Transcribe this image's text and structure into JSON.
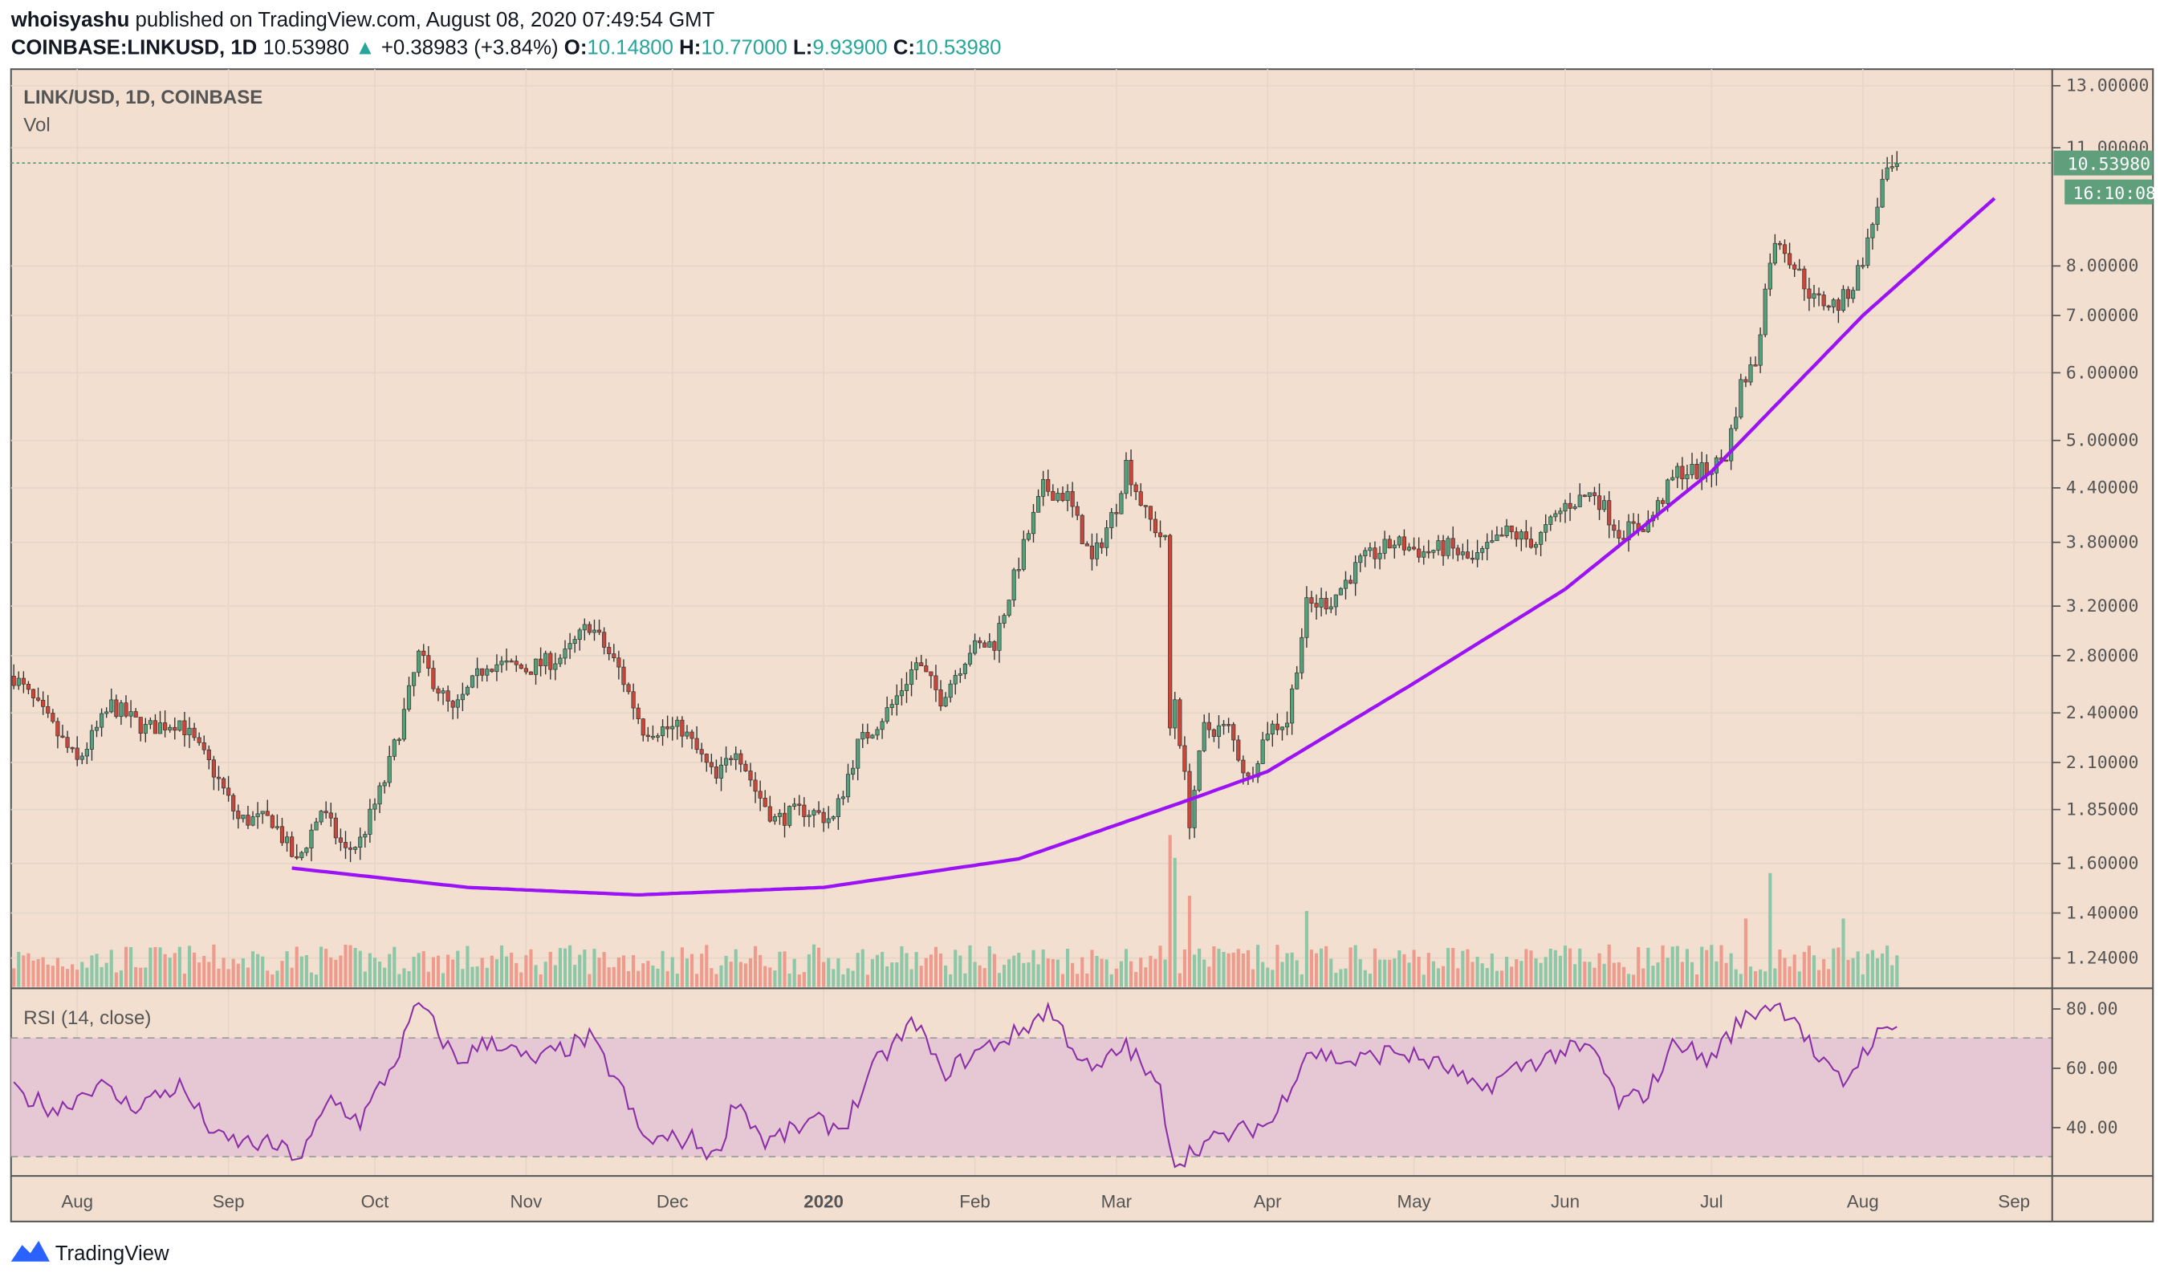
{
  "header": {
    "author": "whoisyashu",
    "published": "published on TradingView.com, August 08, 2020 07:49:54 GMT",
    "symbol": "COINBASE:LINKUSD, 1D",
    "last": "10.53980",
    "change": "+0.38983 (+3.84%)",
    "o_label": "O:",
    "o": "10.14800",
    "h_label": "H:",
    "h": "10.77000",
    "l_label": "L:",
    "l": "9.93900",
    "c_label": "C:",
    "c": "10.53980"
  },
  "legend": {
    "title": "LINK/USD, 1D, COINBASE",
    "vol": "Vol",
    "rsi": "RSI (14, close)"
  },
  "price_tag": {
    "price": "10.53980",
    "countdown": "16:10:08"
  },
  "footer": {
    "brand": "TradingView"
  },
  "colors": {
    "bg": "#f2dfcf",
    "up": "#53a07a",
    "down": "#c9473a",
    "curve": "#9b12f5",
    "rsi": "#8b2fa8",
    "rsi_band": "#e6c8d4"
  },
  "chart_data": {
    "type": "candlestick",
    "title": "LINK/USD, 1D, COINBASE",
    "start_date": "2019-07-19",
    "end_date": "2020-08-08",
    "y_scale": "log",
    "ylim": [
      1.16,
      14.0
    ],
    "y_ticks": [
      "13.00000",
      "11.00000",
      "8.00000",
      "7.00000",
      "6.00000",
      "5.00000",
      "4.40000",
      "3.80000",
      "3.20000",
      "2.80000",
      "2.40000",
      "2.10000",
      "1.85000",
      "1.60000",
      "1.40000",
      "1.24000"
    ],
    "x_ticks": [
      {
        "label": "Aug",
        "date": "2019-08-01"
      },
      {
        "label": "Sep",
        "date": "2019-09-01"
      },
      {
        "label": "Oct",
        "date": "2019-10-01"
      },
      {
        "label": "Nov",
        "date": "2019-11-01"
      },
      {
        "label": "Dec",
        "date": "2019-12-01"
      },
      {
        "label": "2020",
        "date": "2020-01-01"
      },
      {
        "label": "Feb",
        "date": "2020-02-01"
      },
      {
        "label": "Mar",
        "date": "2020-03-01"
      },
      {
        "label": "Apr",
        "date": "2020-04-01"
      },
      {
        "label": "May",
        "date": "2020-05-01"
      },
      {
        "label": "Jun",
        "date": "2020-06-01"
      },
      {
        "label": "Jul",
        "date": "2020-07-01"
      },
      {
        "label": "Aug",
        "date": "2020-08-01"
      },
      {
        "label": "Sep",
        "date": "2020-09-01"
      }
    ],
    "close_anchors": [
      [
        "2019-07-19",
        2.65
      ],
      [
        "2019-07-26",
        2.35
      ],
      [
        "2019-08-01",
        2.1
      ],
      [
        "2019-08-08",
        2.45
      ],
      [
        "2019-08-15",
        2.3
      ],
      [
        "2019-08-22",
        2.35
      ],
      [
        "2019-08-29",
        2.05
      ],
      [
        "2019-09-03",
        1.8
      ],
      [
        "2019-09-10",
        1.8
      ],
      [
        "2019-09-15",
        1.6
      ],
      [
        "2019-09-20",
        1.85
      ],
      [
        "2019-09-25",
        1.65
      ],
      [
        "2019-09-28",
        1.7
      ],
      [
        "2019-10-03",
        2.0
      ],
      [
        "2019-10-07",
        2.4
      ],
      [
        "2019-10-10",
        2.8
      ],
      [
        "2019-10-17",
        2.4
      ],
      [
        "2019-10-24",
        2.75
      ],
      [
        "2019-11-01",
        2.7
      ],
      [
        "2019-11-09",
        2.8
      ],
      [
        "2019-11-14",
        3.05
      ],
      [
        "2019-11-20",
        2.7
      ],
      [
        "2019-11-25",
        2.3
      ],
      [
        "2019-12-03",
        2.3
      ],
      [
        "2019-12-10",
        2.0
      ],
      [
        "2019-12-14",
        2.2
      ],
      [
        "2019-12-18",
        1.95
      ],
      [
        "2019-12-22",
        1.8
      ],
      [
        "2019-12-28",
        1.85
      ],
      [
        "2020-01-03",
        1.8
      ],
      [
        "2020-01-08",
        2.2
      ],
      [
        "2020-01-15",
        2.45
      ],
      [
        "2020-01-20",
        2.75
      ],
      [
        "2020-01-25",
        2.5
      ],
      [
        "2020-01-31",
        2.85
      ],
      [
        "2020-02-05",
        2.9
      ],
      [
        "2020-02-10",
        3.6
      ],
      [
        "2020-02-15",
        4.4
      ],
      [
        "2020-02-20",
        4.3
      ],
      [
        "2020-02-25",
        3.6
      ],
      [
        "2020-03-01",
        4.2
      ],
      [
        "2020-03-03",
        4.7
      ],
      [
        "2020-03-07",
        4.1
      ],
      [
        "2020-03-11",
        3.8
      ],
      [
        "2020-03-12",
        2.3
      ],
      [
        "2020-03-13",
        2.5
      ],
      [
        "2020-03-16",
        1.8
      ],
      [
        "2020-03-19",
        2.3
      ],
      [
        "2020-03-24",
        2.3
      ],
      [
        "2020-03-28",
        2.0
      ],
      [
        "2020-04-01",
        2.3
      ],
      [
        "2020-04-05",
        2.35
      ],
      [
        "2020-04-09",
        3.2
      ],
      [
        "2020-04-14",
        3.25
      ],
      [
        "2020-04-20",
        3.6
      ],
      [
        "2020-04-27",
        3.8
      ],
      [
        "2020-05-03",
        3.7
      ],
      [
        "2020-05-08",
        3.75
      ],
      [
        "2020-05-13",
        3.6
      ],
      [
        "2020-05-20",
        3.9
      ],
      [
        "2020-05-26",
        3.8
      ],
      [
        "2020-06-01",
        4.2
      ],
      [
        "2020-06-07",
        4.35
      ],
      [
        "2020-06-12",
        3.9
      ],
      [
        "2020-06-18",
        4.0
      ],
      [
        "2020-06-24",
        4.6
      ],
      [
        "2020-06-30",
        4.6
      ],
      [
        "2020-07-04",
        4.8
      ],
      [
        "2020-07-07",
        5.8
      ],
      [
        "2020-07-10",
        6.2
      ],
      [
        "2020-07-13",
        8.2
      ],
      [
        "2020-07-15",
        8.6
      ],
      [
        "2020-07-18",
        8.0
      ],
      [
        "2020-07-22",
        7.3
      ],
      [
        "2020-07-27",
        7.2
      ],
      [
        "2020-07-30",
        7.6
      ],
      [
        "2020-08-02",
        8.5
      ],
      [
        "2020-08-05",
        10.0
      ],
      [
        "2020-08-08",
        10.5398
      ]
    ],
    "volume_spikes": [
      [
        "2020-03-12",
        1.0
      ],
      [
        "2020-03-13",
        0.85
      ],
      [
        "2020-03-16",
        0.6
      ],
      [
        "2020-07-13",
        0.75
      ],
      [
        "2020-07-08",
        0.45
      ],
      [
        "2020-04-09",
        0.5
      ],
      [
        "2020-07-28",
        0.45
      ]
    ],
    "trend_curve": [
      [
        "2019-09-14",
        1.58
      ],
      [
        "2019-10-20",
        1.5
      ],
      [
        "2019-11-24",
        1.47
      ],
      [
        "2020-01-01",
        1.5
      ],
      [
        "2020-02-10",
        1.62
      ],
      [
        "2020-03-16",
        1.9
      ],
      [
        "2020-04-01",
        2.05
      ],
      [
        "2020-05-01",
        2.6
      ],
      [
        "2020-06-01",
        3.35
      ],
      [
        "2020-07-01",
        4.6
      ],
      [
        "2020-08-01",
        7.0
      ],
      [
        "2020-08-28",
        9.6
      ]
    ],
    "rsi": {
      "title": "RSI (14, close)",
      "ylim": [
        22,
        88
      ],
      "bands": [
        30,
        70
      ],
      "y_ticks": [
        "80.00",
        "60.00",
        "40.00"
      ],
      "anchors": [
        [
          "2019-07-19",
          52
        ],
        [
          "2019-07-28",
          46
        ],
        [
          "2019-08-05",
          55
        ],
        [
          "2019-08-12",
          47
        ],
        [
          "2019-08-22",
          54
        ],
        [
          "2019-08-30",
          36
        ],
        [
          "2019-09-10",
          34
        ],
        [
          "2019-09-16",
          30
        ],
        [
          "2019-09-22",
          50
        ],
        [
          "2019-09-28",
          42
        ],
        [
          "2019-10-05",
          62
        ],
        [
          "2019-10-10",
          82
        ],
        [
          "2019-10-18",
          62
        ],
        [
          "2019-10-25",
          70
        ],
        [
          "2019-11-02",
          62
        ],
        [
          "2019-11-14",
          70
        ],
        [
          "2019-11-20",
          55
        ],
        [
          "2019-11-25",
          36
        ],
        [
          "2019-12-05",
          36
        ],
        [
          "2019-12-10",
          30
        ],
        [
          "2019-12-14",
          50
        ],
        [
          "2019-12-20",
          35
        ],
        [
          "2019-12-30",
          42
        ],
        [
          "2020-01-05",
          40
        ],
        [
          "2020-01-12",
          62
        ],
        [
          "2020-01-20",
          76
        ],
        [
          "2020-01-25",
          58
        ],
        [
          "2020-02-02",
          66
        ],
        [
          "2020-02-10",
          72
        ],
        [
          "2020-02-16",
          80
        ],
        [
          "2020-02-25",
          58
        ],
        [
          "2020-03-03",
          68
        ],
        [
          "2020-03-10",
          52
        ],
        [
          "2020-03-13",
          28
        ],
        [
          "2020-03-18",
          34
        ],
        [
          "2020-03-25",
          38
        ],
        [
          "2020-04-02",
          42
        ],
        [
          "2020-04-09",
          66
        ],
        [
          "2020-04-18",
          62
        ],
        [
          "2020-04-27",
          66
        ],
        [
          "2020-05-08",
          60
        ],
        [
          "2020-05-14",
          52
        ],
        [
          "2020-05-22",
          60
        ],
        [
          "2020-06-01",
          66
        ],
        [
          "2020-06-07",
          66
        ],
        [
          "2020-06-12",
          48
        ],
        [
          "2020-06-18",
          52
        ],
        [
          "2020-06-24",
          70
        ],
        [
          "2020-06-30",
          62
        ],
        [
          "2020-07-07",
          76
        ],
        [
          "2020-07-13",
          82
        ],
        [
          "2020-07-18",
          78
        ],
        [
          "2020-07-23",
          62
        ],
        [
          "2020-07-28",
          55
        ],
        [
          "2020-08-03",
          70
        ],
        [
          "2020-08-08",
          74
        ]
      ]
    }
  }
}
